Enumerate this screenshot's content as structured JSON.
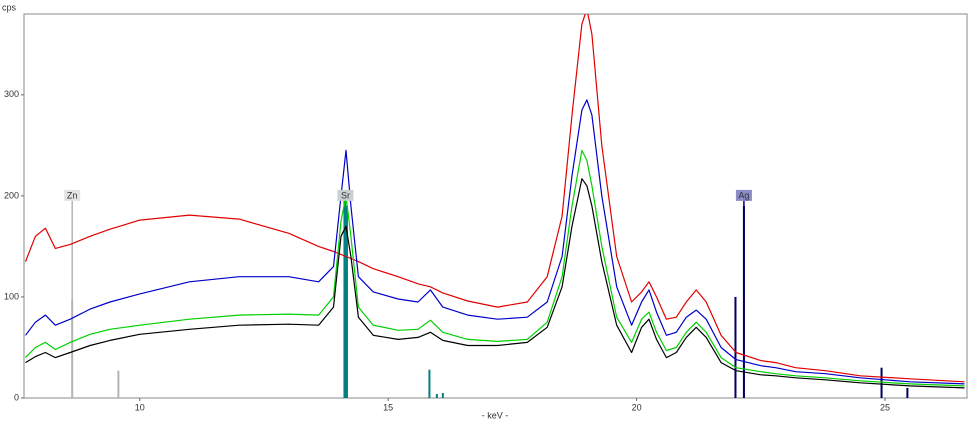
{
  "chart_data": {
    "type": "line",
    "y_label": "cps",
    "x_label": "- keV -",
    "xlim": [
      7.67,
      26.65
    ],
    "ylim": [
      0,
      380
    ],
    "xticks": [
      10,
      15,
      20,
      25
    ],
    "yticks": [
      0,
      100,
      200,
      300
    ],
    "x": [
      7.7,
      7.9,
      8.1,
      8.3,
      8.6,
      9.0,
      9.4,
      10,
      11,
      12,
      13,
      13.6,
      13.9,
      14.05,
      14.15,
      14.25,
      14.4,
      14.7,
      15.2,
      15.6,
      15.85,
      16.1,
      16.6,
      17.2,
      17.8,
      18.2,
      18.5,
      18.7,
      18.9,
      19.0,
      19.1,
      19.3,
      19.6,
      19.9,
      20.1,
      20.25,
      20.4,
      20.6,
      20.8,
      21.0,
      21.2,
      21.4,
      21.7,
      22.0,
      22.5,
      22.8,
      23.2,
      23.8,
      24.5,
      25.5,
      26.6
    ],
    "series": [
      {
        "color": "#e00000",
        "values": [
          135,
          160,
          168,
          148,
          152,
          160,
          167,
          176,
          181,
          177,
          163,
          150,
          145,
          142,
          140,
          138,
          135,
          128,
          120,
          113,
          110,
          104,
          96,
          90,
          95,
          120,
          180,
          280,
          370,
          385,
          360,
          250,
          140,
          95,
          105,
          115,
          100,
          78,
          80,
          95,
          107,
          95,
          62,
          45,
          37,
          35,
          30,
          27,
          22,
          19,
          16
        ]
      },
      {
        "color": "#0000c8",
        "values": [
          62,
          75,
          82,
          72,
          78,
          88,
          95,
          103,
          115,
          120,
          120,
          115,
          130,
          200,
          245,
          190,
          120,
          105,
          98,
          95,
          107,
          90,
          82,
          78,
          80,
          95,
          140,
          220,
          285,
          295,
          280,
          200,
          110,
          72,
          95,
          107,
          85,
          62,
          65,
          80,
          87,
          78,
          50,
          38,
          32,
          30,
          26,
          24,
          20,
          16,
          14
        ]
      },
      {
        "color": "#00d000",
        "values": [
          40,
          50,
          55,
          48,
          55,
          63,
          68,
          72,
          78,
          82,
          83,
          82,
          100,
          175,
          200,
          160,
          90,
          72,
          67,
          68,
          77,
          65,
          58,
          56,
          58,
          75,
          120,
          190,
          245,
          235,
          210,
          150,
          80,
          55,
          78,
          85,
          65,
          47,
          50,
          65,
          75,
          65,
          40,
          30,
          26,
          24,
          22,
          20,
          17,
          14,
          12
        ]
      },
      {
        "color": "#000000",
        "values": [
          35,
          41,
          45,
          40,
          45,
          52,
          57,
          63,
          68,
          72,
          73,
          72,
          90,
          160,
          170,
          140,
          80,
          62,
          58,
          60,
          65,
          57,
          52,
          52,
          55,
          70,
          110,
          170,
          217,
          210,
          190,
          135,
          72,
          45,
          70,
          78,
          58,
          40,
          45,
          60,
          70,
          60,
          35,
          27,
          23,
          22,
          20,
          18,
          15,
          12,
          10
        ]
      }
    ],
    "elements": [
      {
        "label": "Zn",
        "x": 8.64,
        "height": 200,
        "color": "#b4b4b4",
        "label_bg": "#e4e4e4",
        "lines": [
          {
            "x": 8.64,
            "height": 97
          },
          {
            "x": 9.57,
            "height": 27
          }
        ]
      },
      {
        "label": "Sr",
        "x": 14.14,
        "height": 200,
        "color": "#008080",
        "label_bg": "#c8d0d0",
        "lines": [
          {
            "x": 14.12,
            "height": 200
          },
          {
            "x": 14.17,
            "height": 190
          },
          {
            "x": 15.83,
            "height": 28
          },
          {
            "x": 15.98,
            "height": 4
          },
          {
            "x": 16.1,
            "height": 5
          }
        ]
      },
      {
        "label": "Ag",
        "x": 22.16,
        "height": 200,
        "color": "#000060",
        "label_bg": "#8c8cc8",
        "lines": [
          {
            "x": 22.16,
            "height": 190
          },
          {
            "x": 21.99,
            "height": 100
          },
          {
            "x": 24.93,
            "height": 30
          },
          {
            "x": 25.45,
            "height": 10
          }
        ]
      }
    ]
  }
}
